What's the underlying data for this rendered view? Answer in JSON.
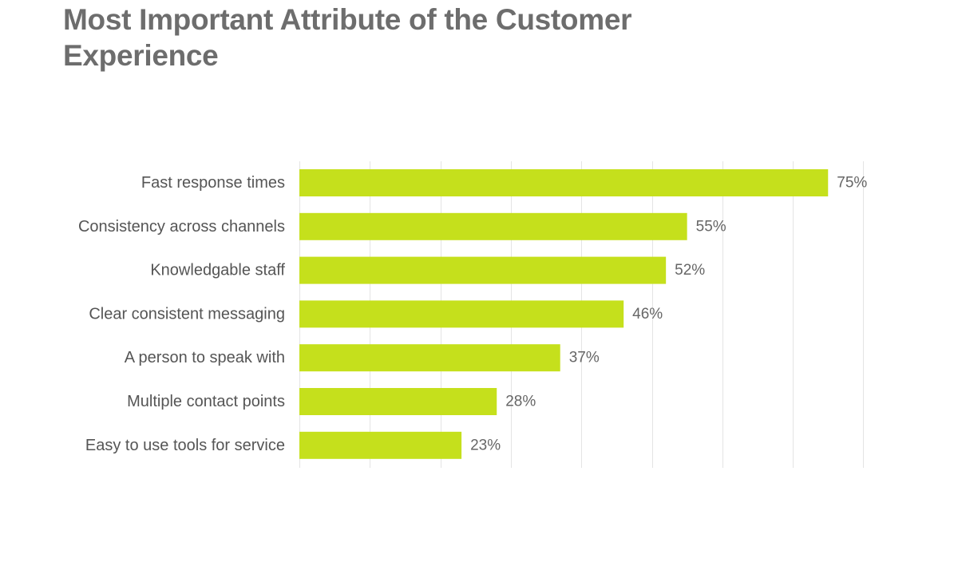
{
  "chart_data": {
    "type": "bar",
    "orientation": "horizontal",
    "title": "Most Important Attribute of the Customer Experience",
    "categories": [
      "Fast response times",
      "Consistency across channels",
      "Knowledgable staff",
      "Clear consistent messaging",
      "A person to speak with",
      "Multiple contact points",
      "Easy to use tools for service"
    ],
    "values": [
      75,
      55,
      52,
      46,
      37,
      28,
      23
    ],
    "value_labels": [
      "75%",
      "55%",
      "52%",
      "46%",
      "37%",
      "28%",
      "23%"
    ],
    "unit": "%",
    "xlim": [
      0,
      80
    ],
    "grid": true,
    "grid_step": 10,
    "legend": "none",
    "bar_color": "#c5e01c"
  }
}
